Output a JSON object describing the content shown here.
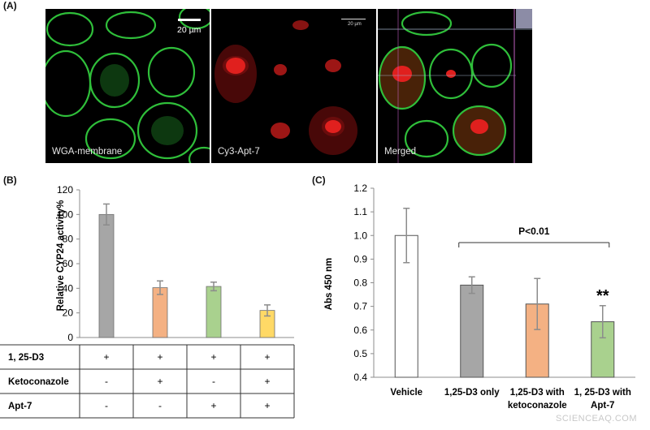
{
  "panels": {
    "a_label": "(A)",
    "b_label": "(B)",
    "c_label": "(C)"
  },
  "micrographs": [
    {
      "caption": "WGA-membrane",
      "scale_bar": "20 µm",
      "channel_color": "#2fbf3a"
    },
    {
      "caption": "Cy3-Apt-7",
      "scale_bar": "20 µm",
      "channel_color": "#e0201e"
    },
    {
      "caption": "Merged",
      "scale_bar": "",
      "channel_color": "#c0c040"
    }
  ],
  "chart_data": [
    {
      "type": "bar",
      "ylabel": "Relative CYP24 activity%",
      "ylim": [
        0,
        120
      ],
      "yticks": [
        "0",
        "20",
        "40",
        "60",
        "80",
        "100",
        "120"
      ],
      "values": [
        100,
        40.5,
        41.5,
        22
      ],
      "errors": [
        8.5,
        5.5,
        3.5,
        4.5
      ],
      "colors": [
        "#a6a6a6",
        "#f4b183",
        "#a9d18e",
        "#ffd966"
      ],
      "grid": false,
      "table": {
        "rows": [
          {
            "label": "1, 25-D3",
            "cells": [
              "+",
              "+",
              "+",
              "+"
            ]
          },
          {
            "label": "Ketoconazole",
            "cells": [
              "-",
              "+",
              "-",
              "+"
            ]
          },
          {
            "label": "Apt-7",
            "cells": [
              "-",
              "-",
              "+",
              "+"
            ]
          }
        ]
      }
    },
    {
      "type": "bar",
      "ylabel": "Abs 450 nm",
      "ylim": [
        0.4,
        1.2
      ],
      "yticks": [
        "0.4",
        "0.5",
        "0.6",
        "0.7",
        "0.8",
        "0.9",
        "1.0",
        "1.1",
        "1.2"
      ],
      "categories": [
        "Vehicle",
        "1,25-D3 only",
        "1,25-D3 with ketoconazole",
        "1, 25-D3 with Apt-7"
      ],
      "category_lines": [
        [
          "Vehicle"
        ],
        [
          "1,25-D3 only"
        ],
        [
          "1,25-D3 with",
          "ketoconazole"
        ],
        [
          "1, 25-D3 with",
          "Apt-7"
        ]
      ],
      "values": [
        1.0,
        0.79,
        0.71,
        0.635
      ],
      "errors": [
        0.115,
        0.035,
        0.108,
        0.068
      ],
      "colors": [
        "#ffffff",
        "#a6a6a6",
        "#f4b183",
        "#a9d18e"
      ],
      "grid": false,
      "annotations": {
        "bracket_text": "P<0.01",
        "significance": "**"
      }
    }
  ],
  "watermark": "SCIENCEAQ.COM"
}
